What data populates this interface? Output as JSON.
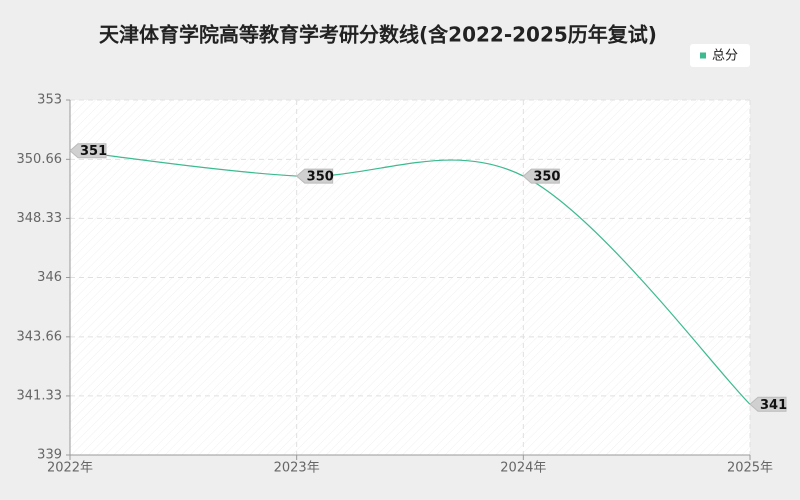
{
  "chart_data": {
    "type": "line",
    "title": "天津体育学院高等教育学考研分数线(含2022-2025历年复试)",
    "categories": [
      "2022年",
      "2023年",
      "2024年",
      "2025年"
    ],
    "series": [
      {
        "name": "总分",
        "color": "#3dba8f",
        "values": [
          351,
          350,
          350,
          341
        ]
      }
    ],
    "ylim": [
      339,
      353
    ],
    "yticks": [
      339,
      341.33,
      343.66,
      346,
      348.33,
      350.66,
      353
    ],
    "grid": true,
    "legend": "top-right"
  }
}
